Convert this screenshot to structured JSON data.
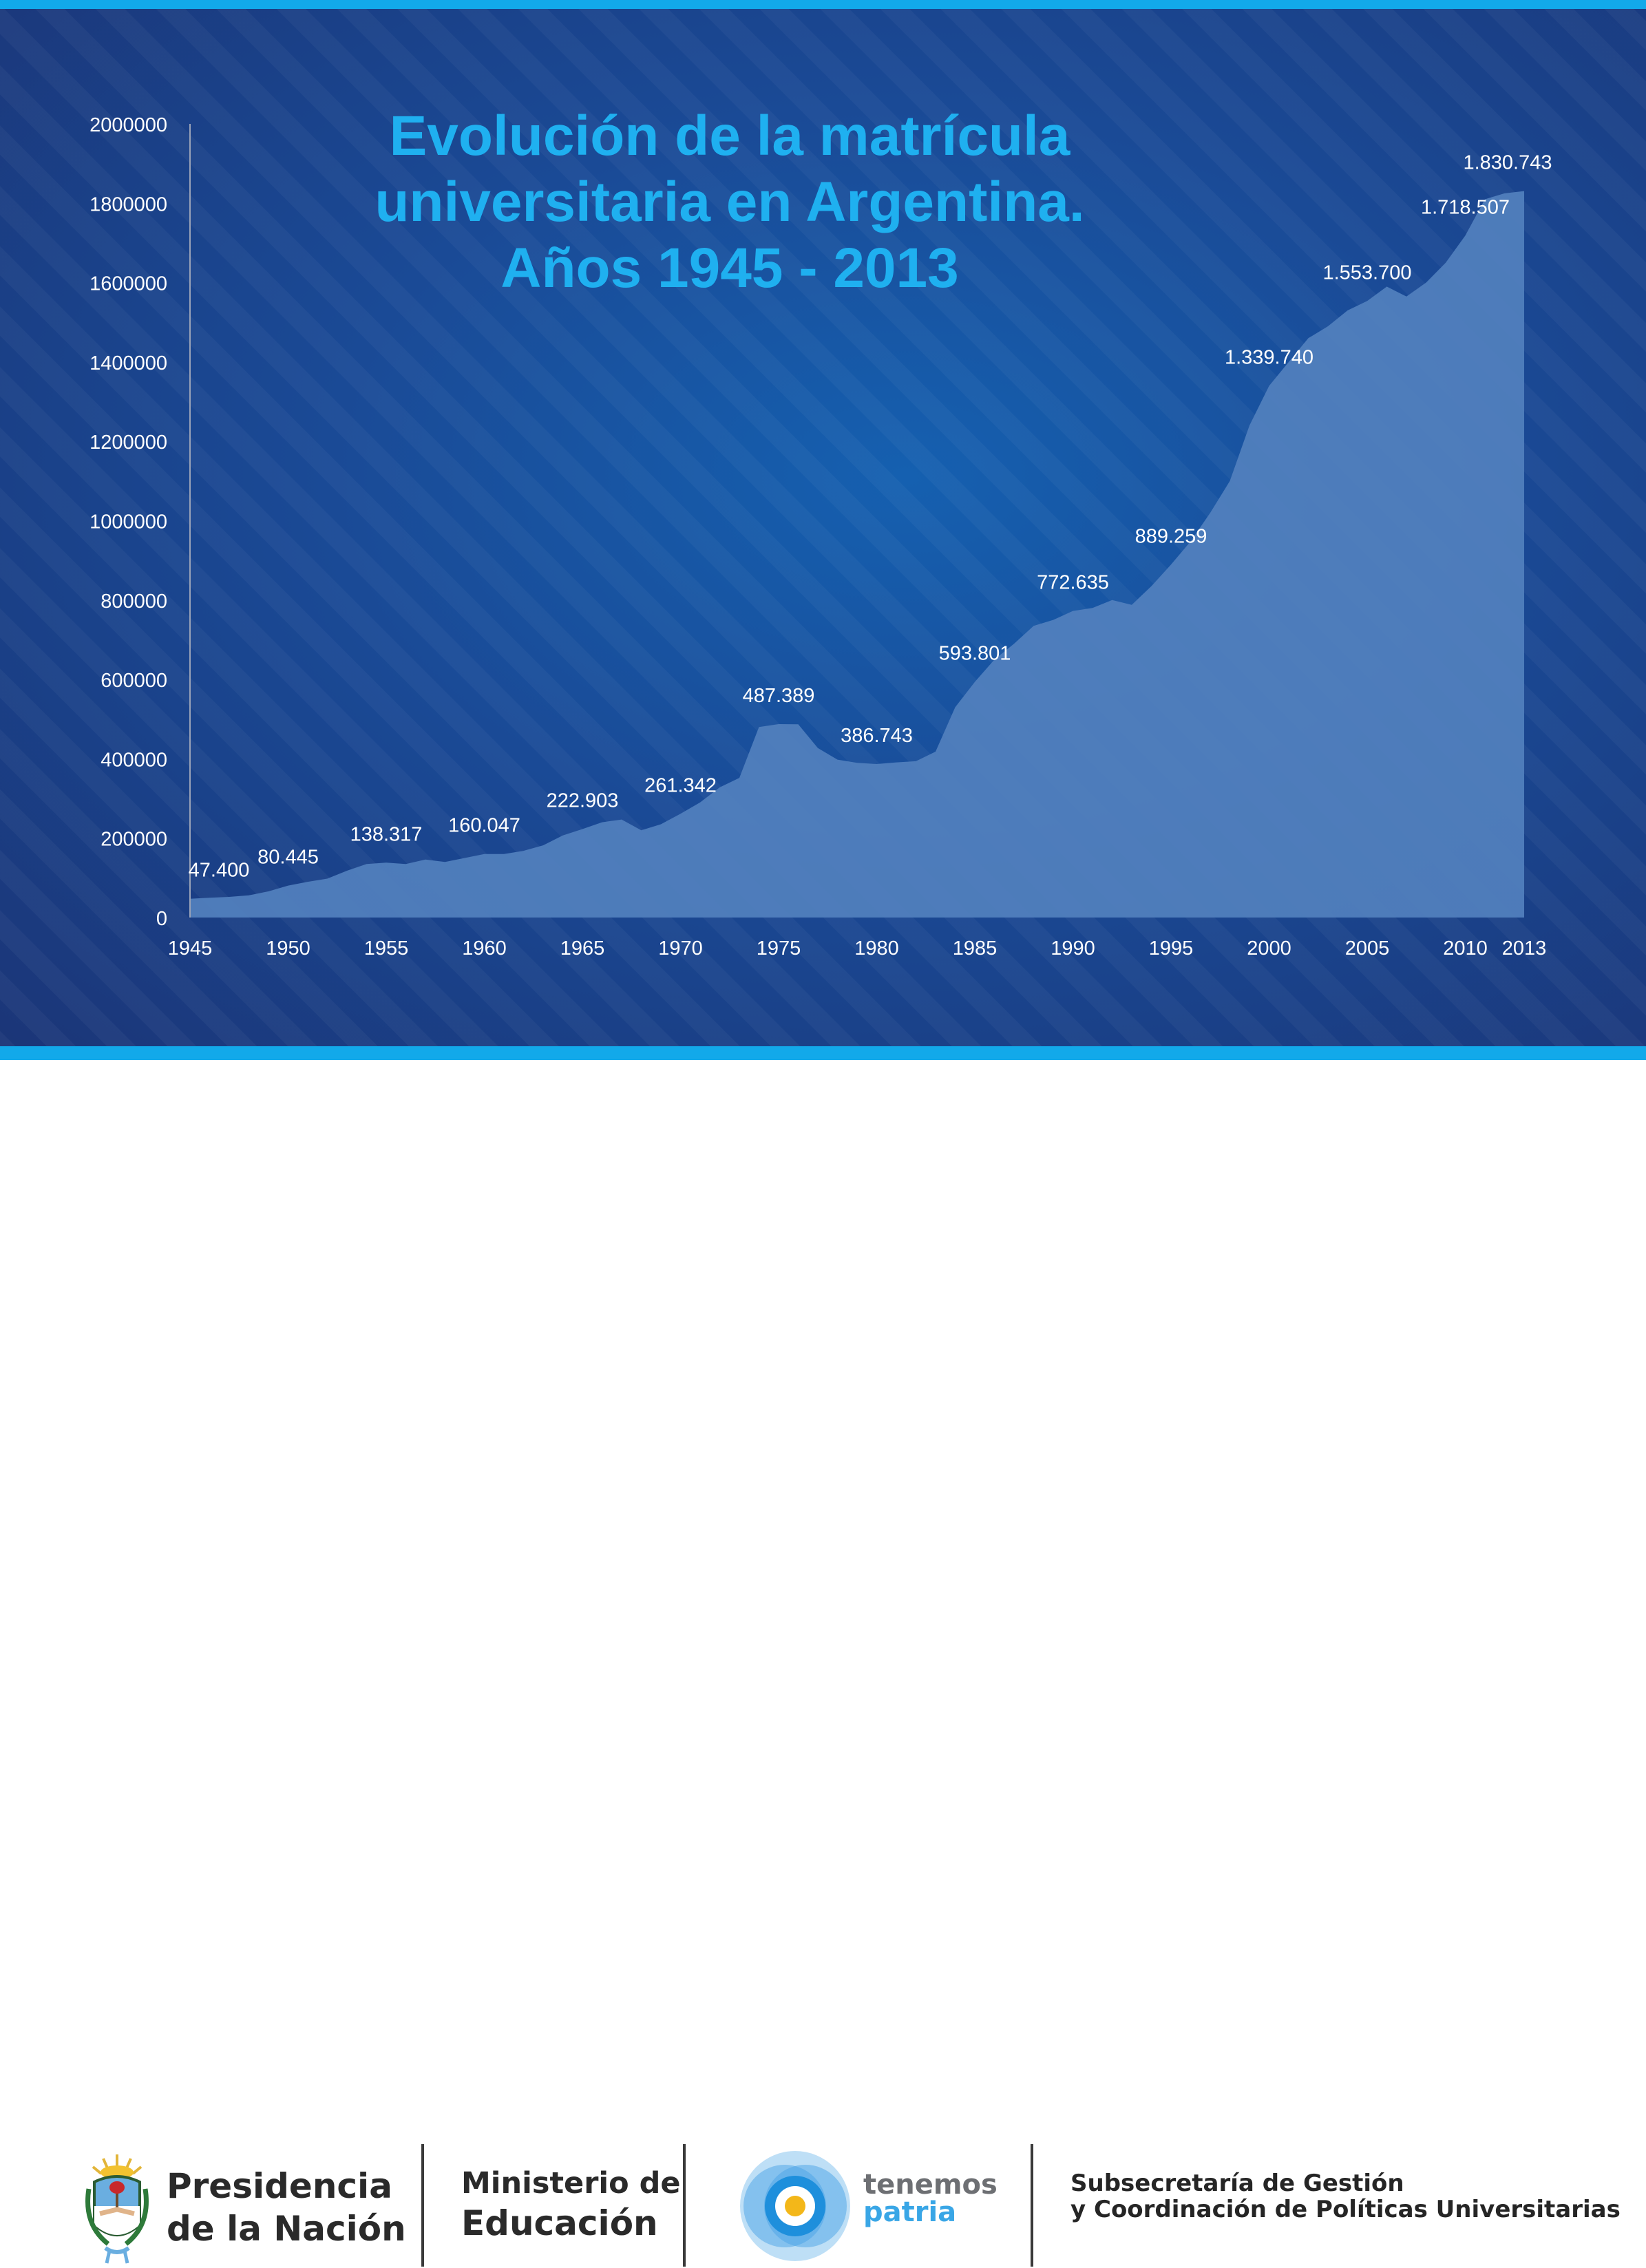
{
  "colors": {
    "accent": "#12a9ea",
    "title": "#1fb0f0",
    "area": "#5280bd",
    "text": "#ffffff",
    "background": "#1a4a96"
  },
  "chart_data": {
    "type": "area",
    "title_lines": [
      "Evolución de la matrícula",
      "universitaria en Argentina.",
      "Años 1945 - 2013"
    ],
    "xlabel": "",
    "ylabel": "",
    "ylim": [
      0,
      2000000
    ],
    "xlim": [
      1945,
      2013
    ],
    "yticks": [
      0,
      200000,
      400000,
      600000,
      800000,
      1000000,
      1200000,
      1400000,
      1600000,
      1800000,
      2000000
    ],
    "xticks": [
      1945,
      1950,
      1955,
      1960,
      1965,
      1970,
      1975,
      1980,
      1985,
      1990,
      1995,
      2000,
      2005,
      2010,
      2013
    ],
    "grid": false,
    "x": [
      1945,
      1946,
      1947,
      1948,
      1949,
      1950,
      1951,
      1952,
      1953,
      1954,
      1955,
      1956,
      1957,
      1958,
      1959,
      1960,
      1961,
      1962,
      1963,
      1964,
      1965,
      1966,
      1967,
      1968,
      1969,
      1970,
      1971,
      1972,
      1973,
      1974,
      1975,
      1976,
      1977,
      1978,
      1979,
      1980,
      1981,
      1982,
      1983,
      1984,
      1985,
      1986,
      1987,
      1988,
      1989,
      1990,
      1991,
      1992,
      1993,
      1994,
      1995,
      1996,
      1997,
      1998,
      1999,
      2000,
      2001,
      2002,
      2003,
      2004,
      2005,
      2006,
      2007,
      2008,
      2009,
      2010,
      2011,
      2012,
      2013
    ],
    "y": [
      47400,
      50000,
      52000,
      56000,
      66000,
      80445,
      90000,
      98000,
      118000,
      135000,
      138317,
      135000,
      146000,
      140000,
      150000,
      160047,
      160000,
      168000,
      182000,
      207000,
      222903,
      240000,
      247000,
      220000,
      235000,
      261342,
      290000,
      328000,
      352000,
      480000,
      487389,
      487000,
      427000,
      398000,
      390000,
      386743,
      391000,
      394000,
      418000,
      530000,
      593801,
      650000,
      690000,
      735000,
      750000,
      772635,
      780000,
      800000,
      788000,
      835000,
      889259,
      948000,
      1020000,
      1100000,
      1240000,
      1339740,
      1400000,
      1460000,
      1490000,
      1530000,
      1553700,
      1590000,
      1565000,
      1600000,
      1650000,
      1718507,
      1810000,
      1825000,
      1830743
    ],
    "data_labels": [
      {
        "x": 1945,
        "text": "47.400"
      },
      {
        "x": 1950,
        "text": "80.445"
      },
      {
        "x": 1955,
        "text": "138.317"
      },
      {
        "x": 1960,
        "text": "160.047"
      },
      {
        "x": 1965,
        "text": "222.903"
      },
      {
        "x": 1970,
        "text": "261.342"
      },
      {
        "x": 1975,
        "text": "487.389"
      },
      {
        "x": 1980,
        "text": "386.743"
      },
      {
        "x": 1985,
        "text": "593.801"
      },
      {
        "x": 1990,
        "text": "772.635"
      },
      {
        "x": 1995,
        "text": "889.259"
      },
      {
        "x": 2000,
        "text": "1.339.740"
      },
      {
        "x": 2005,
        "text": "1.553.700"
      },
      {
        "x": 2010,
        "text": "1.718.507"
      },
      {
        "x": 2013,
        "text": "1.830.743"
      }
    ]
  },
  "footer": {
    "presidencia": [
      "Presidencia",
      "de la Nación"
    ],
    "ministerio": [
      "Ministerio de",
      "Educación"
    ],
    "campaign": [
      "tenemos",
      "patria"
    ],
    "subsecretaria": [
      "Subsecretaría de Gestión",
      "y Coordinación de Políticas Universitarias"
    ]
  }
}
